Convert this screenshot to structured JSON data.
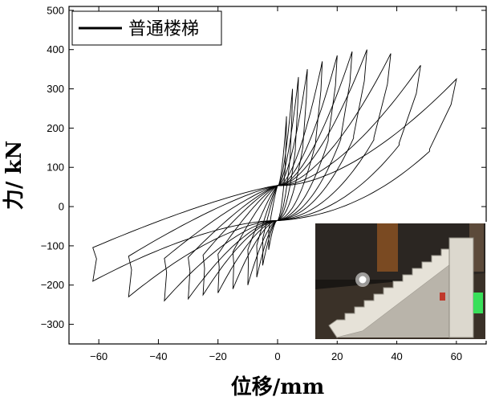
{
  "chart_data": {
    "type": "line",
    "title": "",
    "xlabel": "位移/mm",
    "ylabel": "力/ kN",
    "xlim": [
      -70,
      70
    ],
    "ylim": [
      -350,
      510
    ],
    "x_ticks": [
      -60,
      -40,
      -20,
      0,
      20,
      40,
      60
    ],
    "y_ticks": [
      -300,
      -200,
      -100,
      0,
      100,
      200,
      300,
      400,
      500
    ],
    "x_tick_labels": [
      "−60",
      "−40",
      "−20",
      "0",
      "20",
      "40",
      "60"
    ],
    "y_tick_labels": [
      "−300",
      "−200",
      "−100",
      "0",
      "100",
      "200",
      "300",
      "400",
      "500"
    ],
    "grid": false,
    "legend": {
      "position": "top-left",
      "entries": [
        "普通楼梯"
      ]
    },
    "series": [
      {
        "name": "普通楼梯",
        "color": "#000000",
        "cycles": [
          {
            "x_max": 3,
            "x_min": -3,
            "f_max": 230,
            "f_min": -110
          },
          {
            "x_max": 5,
            "x_min": -5,
            "f_max": 300,
            "f_min": -150
          },
          {
            "x_max": 7,
            "x_min": -7,
            "f_max": 330,
            "f_min": -180
          },
          {
            "x_max": 10,
            "x_min": -10,
            "f_max": 350,
            "f_min": -200
          },
          {
            "x_max": 15,
            "x_min": -15,
            "f_max": 370,
            "f_min": -210
          },
          {
            "x_max": 20,
            "x_min": -20,
            "f_max": 385,
            "f_min": -220
          },
          {
            "x_max": 25,
            "x_min": -25,
            "f_max": 395,
            "f_min": -225
          },
          {
            "x_max": 30,
            "x_min": -30,
            "f_max": 400,
            "f_min": -235
          },
          {
            "x_max": 38,
            "x_min": -38,
            "f_max": 390,
            "f_min": -240
          },
          {
            "x_max": 48,
            "x_min": -50,
            "f_max": 360,
            "f_min": -230
          },
          {
            "x_max": 60,
            "x_min": -62,
            "f_max": 325,
            "f_min": -190
          }
        ]
      }
    ],
    "inset_photo": {
      "position": "bottom-right"
    }
  }
}
